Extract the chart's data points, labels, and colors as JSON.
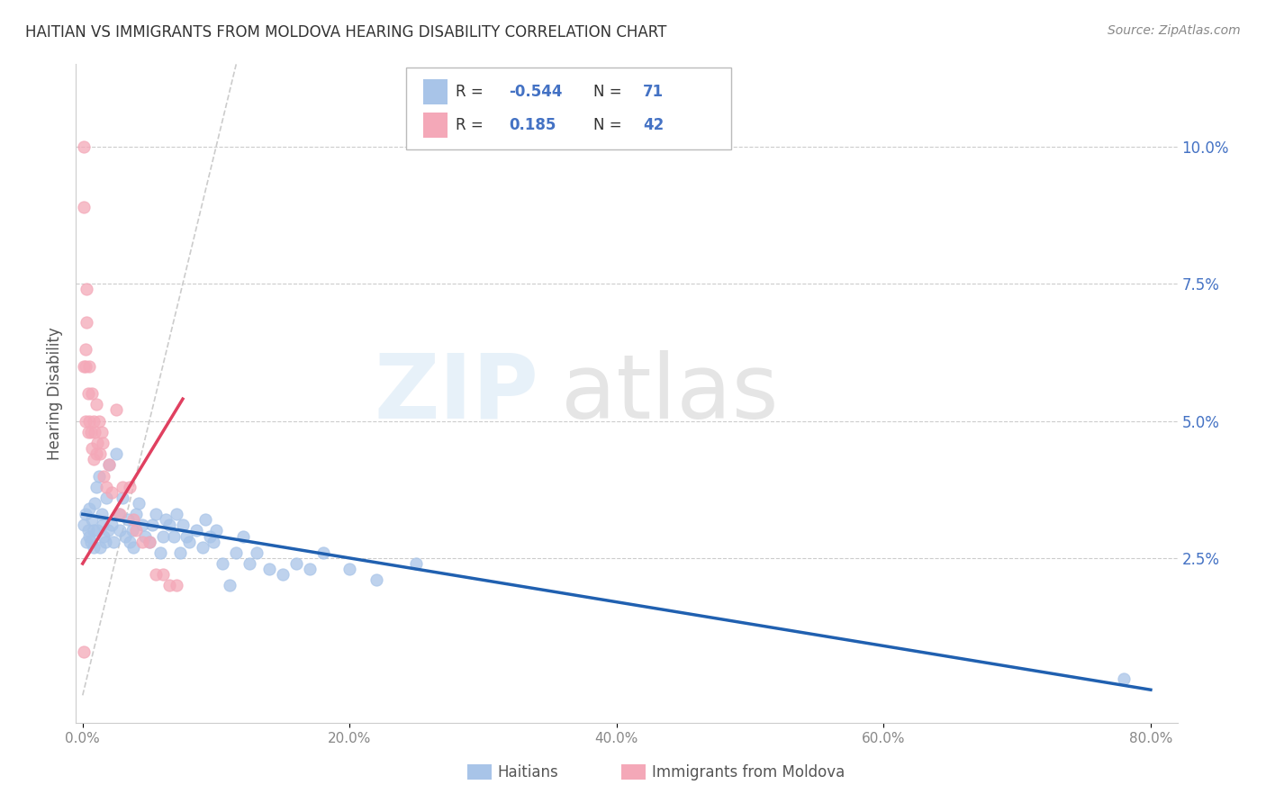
{
  "title": "HAITIAN VS IMMIGRANTS FROM MOLDOVA HEARING DISABILITY CORRELATION CHART",
  "source": "Source: ZipAtlas.com",
  "ylabel": "Hearing Disability",
  "right_yticks": [
    "10.0%",
    "7.5%",
    "5.0%",
    "2.5%"
  ],
  "right_ytick_vals": [
    0.1,
    0.075,
    0.05,
    0.025
  ],
  "xlim": [
    -0.005,
    0.82
  ],
  "ylim": [
    -0.005,
    0.115
  ],
  "blue_color": "#a8c4e8",
  "blue_line_color": "#2060b0",
  "pink_color": "#f4a8b8",
  "pink_line_color": "#e04060",
  "diag_color": "#cccccc",
  "haitians_x": [
    0.001,
    0.002,
    0.003,
    0.004,
    0.005,
    0.005,
    0.006,
    0.007,
    0.008,
    0.008,
    0.009,
    0.01,
    0.011,
    0.012,
    0.013,
    0.014,
    0.015,
    0.016,
    0.017,
    0.018,
    0.019,
    0.02,
    0.022,
    0.023,
    0.025,
    0.027,
    0.028,
    0.03,
    0.032,
    0.034,
    0.035,
    0.037,
    0.038,
    0.04,
    0.042,
    0.045,
    0.047,
    0.05,
    0.052,
    0.055,
    0.058,
    0.06,
    0.062,
    0.065,
    0.068,
    0.07,
    0.073,
    0.075,
    0.078,
    0.08,
    0.085,
    0.09,
    0.092,
    0.095,
    0.098,
    0.1,
    0.105,
    0.11,
    0.115,
    0.12,
    0.125,
    0.13,
    0.14,
    0.15,
    0.16,
    0.17,
    0.18,
    0.2,
    0.22,
    0.25,
    0.78
  ],
  "haitians_y": [
    0.031,
    0.033,
    0.028,
    0.03,
    0.034,
    0.029,
    0.028,
    0.032,
    0.03,
    0.027,
    0.035,
    0.038,
    0.03,
    0.04,
    0.027,
    0.033,
    0.031,
    0.029,
    0.028,
    0.036,
    0.03,
    0.042,
    0.031,
    0.028,
    0.044,
    0.033,
    0.03,
    0.036,
    0.029,
    0.032,
    0.028,
    0.03,
    0.027,
    0.033,
    0.035,
    0.031,
    0.029,
    0.028,
    0.031,
    0.033,
    0.026,
    0.029,
    0.032,
    0.031,
    0.029,
    0.033,
    0.026,
    0.031,
    0.029,
    0.028,
    0.03,
    0.027,
    0.032,
    0.029,
    0.028,
    0.03,
    0.024,
    0.02,
    0.026,
    0.029,
    0.024,
    0.026,
    0.023,
    0.022,
    0.024,
    0.023,
    0.026,
    0.023,
    0.021,
    0.024,
    0.003
  ],
  "moldova_x": [
    0.001,
    0.001,
    0.001,
    0.002,
    0.002,
    0.002,
    0.003,
    0.003,
    0.004,
    0.004,
    0.005,
    0.005,
    0.006,
    0.007,
    0.007,
    0.008,
    0.008,
    0.009,
    0.01,
    0.01,
    0.011,
    0.012,
    0.013,
    0.014,
    0.015,
    0.016,
    0.018,
    0.02,
    0.022,
    0.025,
    0.028,
    0.03,
    0.035,
    0.038,
    0.04,
    0.045,
    0.05,
    0.055,
    0.06,
    0.065,
    0.001,
    0.07
  ],
  "moldova_y": [
    0.1,
    0.089,
    0.06,
    0.063,
    0.06,
    0.05,
    0.074,
    0.068,
    0.055,
    0.048,
    0.06,
    0.05,
    0.048,
    0.055,
    0.045,
    0.05,
    0.043,
    0.048,
    0.053,
    0.044,
    0.046,
    0.05,
    0.044,
    0.048,
    0.046,
    0.04,
    0.038,
    0.042,
    0.037,
    0.052,
    0.033,
    0.038,
    0.038,
    0.032,
    0.03,
    0.028,
    0.028,
    0.022,
    0.022,
    0.02,
    0.008,
    0.02
  ],
  "blue_trend_x": [
    0.0,
    0.8
  ],
  "blue_trend_y_start": 0.033,
  "blue_trend_y_end": 0.001,
  "pink_trend_x": [
    0.0,
    0.075
  ],
  "pink_trend_y_start": 0.024,
  "pink_trend_y_end": 0.054
}
